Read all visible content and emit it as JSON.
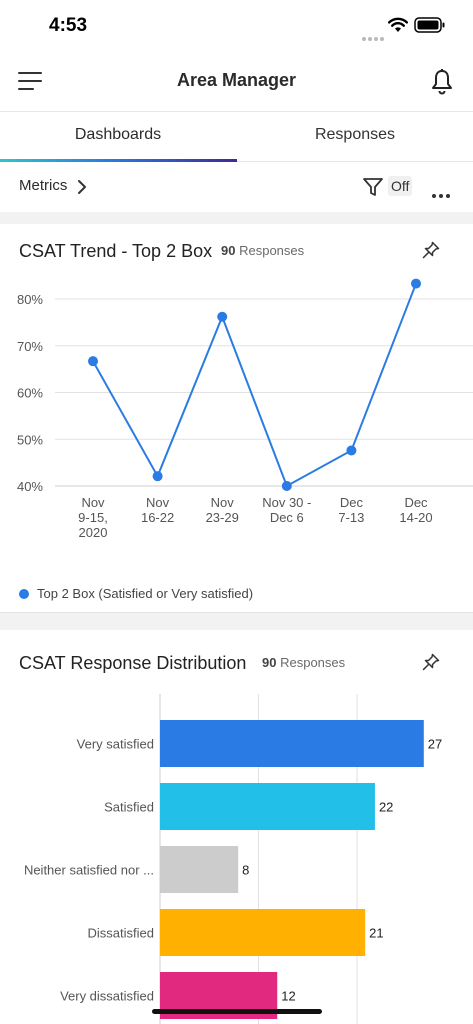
{
  "status_bar": {
    "time": "4:53"
  },
  "header": {
    "title": "Area Manager"
  },
  "tabs": [
    {
      "label": "Dashboards",
      "active": true
    },
    {
      "label": "Responses",
      "active": false
    }
  ],
  "toolbar": {
    "metrics_label": "Metrics",
    "filter_state": "Off"
  },
  "colors": {
    "accent": "#2a7be4"
  },
  "csat_trend": {
    "title": "CSAT Trend - Top 2 Box",
    "response_count": "90",
    "response_label": "Responses"
  },
  "csat_distribution": {
    "title": "CSAT Response Distribution",
    "response_count": "90",
    "response_label": "Responses"
  },
  "chart_data": [
    {
      "type": "line",
      "title": "CSAT Trend - Top 2 Box",
      "categories": [
        [
          "Nov",
          "9-15,",
          "2020"
        ],
        [
          "Nov",
          "16-22"
        ],
        [
          "Nov",
          "23-29"
        ],
        [
          "Nov 30 -",
          "Dec 6"
        ],
        [
          "Dec",
          "7-13"
        ],
        [
          "Dec",
          "14-20"
        ]
      ],
      "y_ticks": [
        "40%",
        "50%",
        "60%",
        "70%",
        "80%"
      ],
      "ylim": [
        40,
        80
      ],
      "grid": true,
      "series": [
        {
          "name": "Top 2 Box (Satisfied or Very satisfied)",
          "color": "#2a7be4",
          "values": [
            66.7,
            42.1,
            76.2,
            40.0,
            47.6,
            83.3
          ]
        }
      ],
      "legend": "bottom-left"
    },
    {
      "type": "bar",
      "orientation": "horizontal",
      "title": "CSAT Response Distribution",
      "categories": [
        "Very satisfied",
        "Satisfied",
        "Neither satisfied nor ...",
        "Dissatisfied",
        "Very dissatisfied"
      ],
      "values": [
        27,
        22,
        8,
        21,
        12
      ],
      "colors": [
        "#2a7be4",
        "#22c0e8",
        "#cccccc",
        "#ffb000",
        "#e0297f"
      ],
      "grid": true
    }
  ]
}
